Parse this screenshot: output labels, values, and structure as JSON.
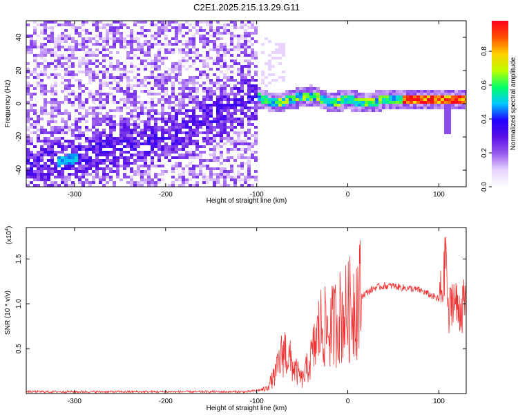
{
  "title": "C2E1.2025.215.13.29.G11",
  "colors": {
    "snr_line": "#ee3333",
    "colormap": [
      "#ffffff",
      "#e8d4ff",
      "#9a5cf0",
      "#5a10e6",
      "#2000ff",
      "#00c8ff",
      "#00ff66",
      "#bfff00",
      "#ffd000",
      "#ff5000",
      "#ff0020"
    ]
  },
  "chart_data": [
    {
      "type": "heatmap",
      "title": "C2E1.2025.215.13.29.G11",
      "xlabel": "Height of straight line (km)",
      "ylabel": "Frequency (Hz)",
      "colorbar_label": "Normalized spectral amplitude",
      "xlim": [
        -353,
        130
      ],
      "ylim": [
        -50,
        50
      ],
      "xticks": [
        -300,
        -200,
        -100,
        0,
        100
      ],
      "xtick_labels": [
        "-300",
        "-200",
        "-100",
        "0",
        "100"
      ],
      "yticks": [
        -40,
        -20,
        0,
        20,
        40
      ],
      "ytick_labels": [
        "-40",
        "-20",
        "0",
        "20",
        "40"
      ],
      "colorbar_ticks": [
        0.0,
        0.2,
        0.4,
        0.6,
        0.8
      ],
      "colorbar_tick_labels": [
        "0.0",
        "0.2",
        "0.4",
        "0.6",
        "0.8"
      ],
      "colorbar_range": [
        0,
        0.98
      ],
      "features": {
        "noise_region_x": [
          -353,
          -100
        ],
        "drift_line": {
          "x": [
            -353,
            -300,
            -200,
            -100
          ],
          "y": [
            -38,
            -33,
            -20,
            5
          ]
        },
        "carrier_line": {
          "x": [
            -100,
            -80,
            -60,
            -40,
            -20,
            0,
            20,
            40,
            60,
            80,
            100,
            130
          ],
          "y": [
            4,
            0,
            3,
            5,
            1,
            2,
            1,
            2,
            2,
            2,
            2,
            2
          ]
        },
        "spike": {
          "x": 110,
          "y_range": [
            -18,
            5
          ]
        }
      }
    },
    {
      "type": "line",
      "xlabel": "Height of straight line (km)",
      "ylabel": "SNR (10 * v/v)",
      "y_multiplier": "(x10^4)",
      "y_multiplier_base": "(x10",
      "y_multiplier_exp": "4",
      "y_multiplier_close": ")",
      "xlim": [
        -353,
        130
      ],
      "ylim": [
        0,
        1.85
      ],
      "xticks": [
        -300,
        -200,
        -100,
        0,
        100
      ],
      "xtick_labels": [
        "-300",
        "-200",
        "-100",
        "0",
        "100"
      ],
      "yticks": [
        0.5,
        1.0,
        1.5
      ],
      "ytick_labels": [
        "0.5",
        "1.0",
        "1.5"
      ],
      "series": [
        {
          "x": [
            -353,
            -300,
            -200,
            -110,
            -90,
            -80,
            -70,
            -60,
            -50,
            -40,
            -30,
            -20,
            -10,
            0,
            10,
            20,
            30,
            40,
            50,
            60,
            70,
            80,
            90,
            100,
            105,
            108,
            110,
            115,
            120,
            130
          ],
          "y": [
            0.02,
            0.02,
            0.02,
            0.02,
            0.05,
            0.2,
            0.5,
            0.3,
            0.15,
            0.4,
            0.75,
            0.7,
            0.85,
            0.9,
            1.05,
            1.12,
            1.18,
            1.2,
            1.2,
            1.18,
            1.17,
            1.15,
            1.1,
            1.05,
            1.2,
            1.7,
            0.8,
            1.1,
            0.95,
            0.98
          ]
        }
      ]
    }
  ]
}
